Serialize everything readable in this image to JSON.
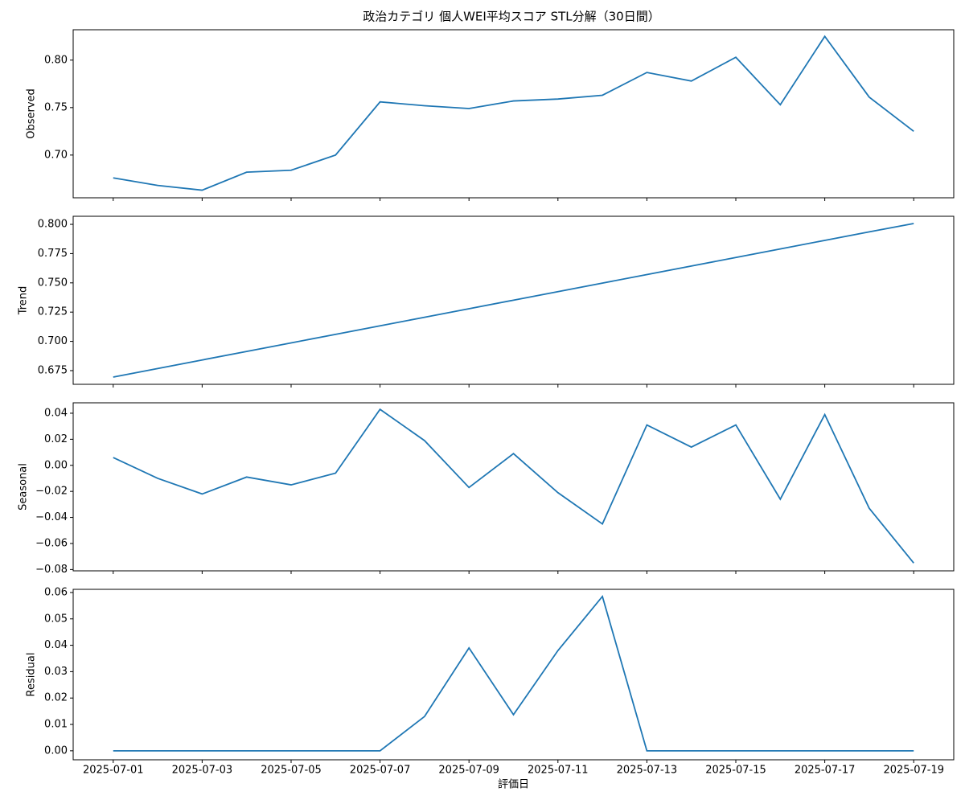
{
  "title": "政治カテゴリ 個人WEI平均スコア STL分解（30日間）",
  "chart_data": [
    {
      "type": "line",
      "ylabel": "Observed",
      "x": [
        "2025-07-01",
        "2025-07-02",
        "2025-07-03",
        "2025-07-04",
        "2025-07-05",
        "2025-07-06",
        "2025-07-07",
        "2025-07-08",
        "2025-07-09",
        "2025-07-10",
        "2025-07-11",
        "2025-07-12",
        "2025-07-13",
        "2025-07-14",
        "2025-07-15",
        "2025-07-16",
        "2025-07-17",
        "2025-07-18",
        "2025-07-19"
      ],
      "series": [
        {
          "color": "#1f77b4",
          "values": [
            0.676,
            0.668,
            0.663,
            0.682,
            0.684,
            0.7,
            0.756,
            0.752,
            0.749,
            0.757,
            0.759,
            0.763,
            0.787,
            0.778,
            0.803,
            0.753,
            0.825,
            0.761,
            0.725
          ]
        }
      ],
      "ylim": [
        0.655,
        0.832
      ],
      "yticks": [
        {
          "value": 0.7,
          "label": "0.70"
        },
        {
          "value": 0.75,
          "label": "0.75"
        },
        {
          "value": 0.8,
          "label": "0.80"
        }
      ]
    },
    {
      "type": "line",
      "ylabel": "Trend",
      "x": [
        "2025-07-01",
        "2025-07-02",
        "2025-07-03",
        "2025-07-04",
        "2025-07-05",
        "2025-07-06",
        "2025-07-07",
        "2025-07-08",
        "2025-07-09",
        "2025-07-10",
        "2025-07-11",
        "2025-07-12",
        "2025-07-13",
        "2025-07-14",
        "2025-07-15",
        "2025-07-16",
        "2025-07-17",
        "2025-07-18",
        "2025-07-19"
      ],
      "series": [
        {
          "color": "#1f77b4",
          "values": [
            0.6695,
            0.6768,
            0.6841,
            0.6914,
            0.6987,
            0.706,
            0.7133,
            0.7206,
            0.7279,
            0.7352,
            0.7425,
            0.7498,
            0.7571,
            0.7644,
            0.7717,
            0.779,
            0.7863,
            0.7936,
            0.8007
          ]
        }
      ],
      "ylim": [
        0.6633,
        0.8069
      ],
      "yticks": [
        0.675,
        {
          "value": 0.7,
          "label": "0.700"
        },
        0.725,
        {
          "value": 0.75,
          "label": "0.750"
        },
        0.775,
        {
          "value": 0.8,
          "label": "0.800"
        }
      ]
    },
    {
      "type": "line",
      "ylabel": "Seasonal",
      "x": [
        "2025-07-01",
        "2025-07-02",
        "2025-07-03",
        "2025-07-04",
        "2025-07-05",
        "2025-07-06",
        "2025-07-07",
        "2025-07-08",
        "2025-07-09",
        "2025-07-10",
        "2025-07-11",
        "2025-07-12",
        "2025-07-13",
        "2025-07-14",
        "2025-07-15",
        "2025-07-16",
        "2025-07-17",
        "2025-07-18",
        "2025-07-19"
      ],
      "series": [
        {
          "color": "#1f77b4",
          "values": [
            0.006,
            -0.01,
            -0.022,
            -0.009,
            -0.015,
            -0.006,
            0.043,
            0.019,
            -0.017,
            0.009,
            -0.021,
            -0.045,
            0.031,
            0.014,
            0.031,
            -0.026,
            0.039,
            -0.033,
            -0.075
          ]
        }
      ],
      "ylim": [
        -0.081,
        0.048
      ],
      "yticks": [
        {
          "value": -0.08,
          "label": "−0.08"
        },
        {
          "value": -0.06,
          "label": "−0.06"
        },
        {
          "value": -0.04,
          "label": "−0.04"
        },
        {
          "value": -0.02,
          "label": "−0.02"
        },
        {
          "value": 0,
          "label": "0.00"
        },
        {
          "value": 0.02,
          "label": "0.02"
        },
        {
          "value": 0.04,
          "label": "0.04"
        }
      ]
    },
    {
      "type": "line",
      "ylabel": "Residual",
      "xlabel": "評価日",
      "x": [
        "2025-07-01",
        "2025-07-02",
        "2025-07-03",
        "2025-07-04",
        "2025-07-05",
        "2025-07-06",
        "2025-07-07",
        "2025-07-08",
        "2025-07-09",
        "2025-07-10",
        "2025-07-11",
        "2025-07-12",
        "2025-07-13",
        "2025-07-14",
        "2025-07-15",
        "2025-07-16",
        "2025-07-17",
        "2025-07-18",
        "2025-07-19"
      ],
      "series": [
        {
          "color": "#1f77b4",
          "values": [
            0,
            0,
            0,
            0,
            0,
            0,
            0,
            0.013,
            0.039,
            0.0137,
            0.038,
            0.0585,
            0,
            0,
            0,
            0,
            0,
            0,
            0
          ]
        }
      ],
      "ylim": [
        -0.0034,
        0.0612
      ],
      "yticks": [
        {
          "value": 0,
          "label": "0.00"
        },
        {
          "value": 0.01,
          "label": "0.01"
        },
        {
          "value": 0.02,
          "label": "0.02"
        },
        {
          "value": 0.03,
          "label": "0.03"
        },
        {
          "value": 0.04,
          "label": "0.04"
        },
        {
          "value": 0.05,
          "label": "0.05"
        },
        {
          "value": 0.06,
          "label": "0.06"
        }
      ],
      "xticks": [
        "2025-07-01",
        "2025-07-03",
        "2025-07-05",
        "2025-07-07",
        "2025-07-09",
        "2025-07-11",
        "2025-07-13",
        "2025-07-15",
        "2025-07-17",
        "2025-07-19"
      ]
    }
  ]
}
